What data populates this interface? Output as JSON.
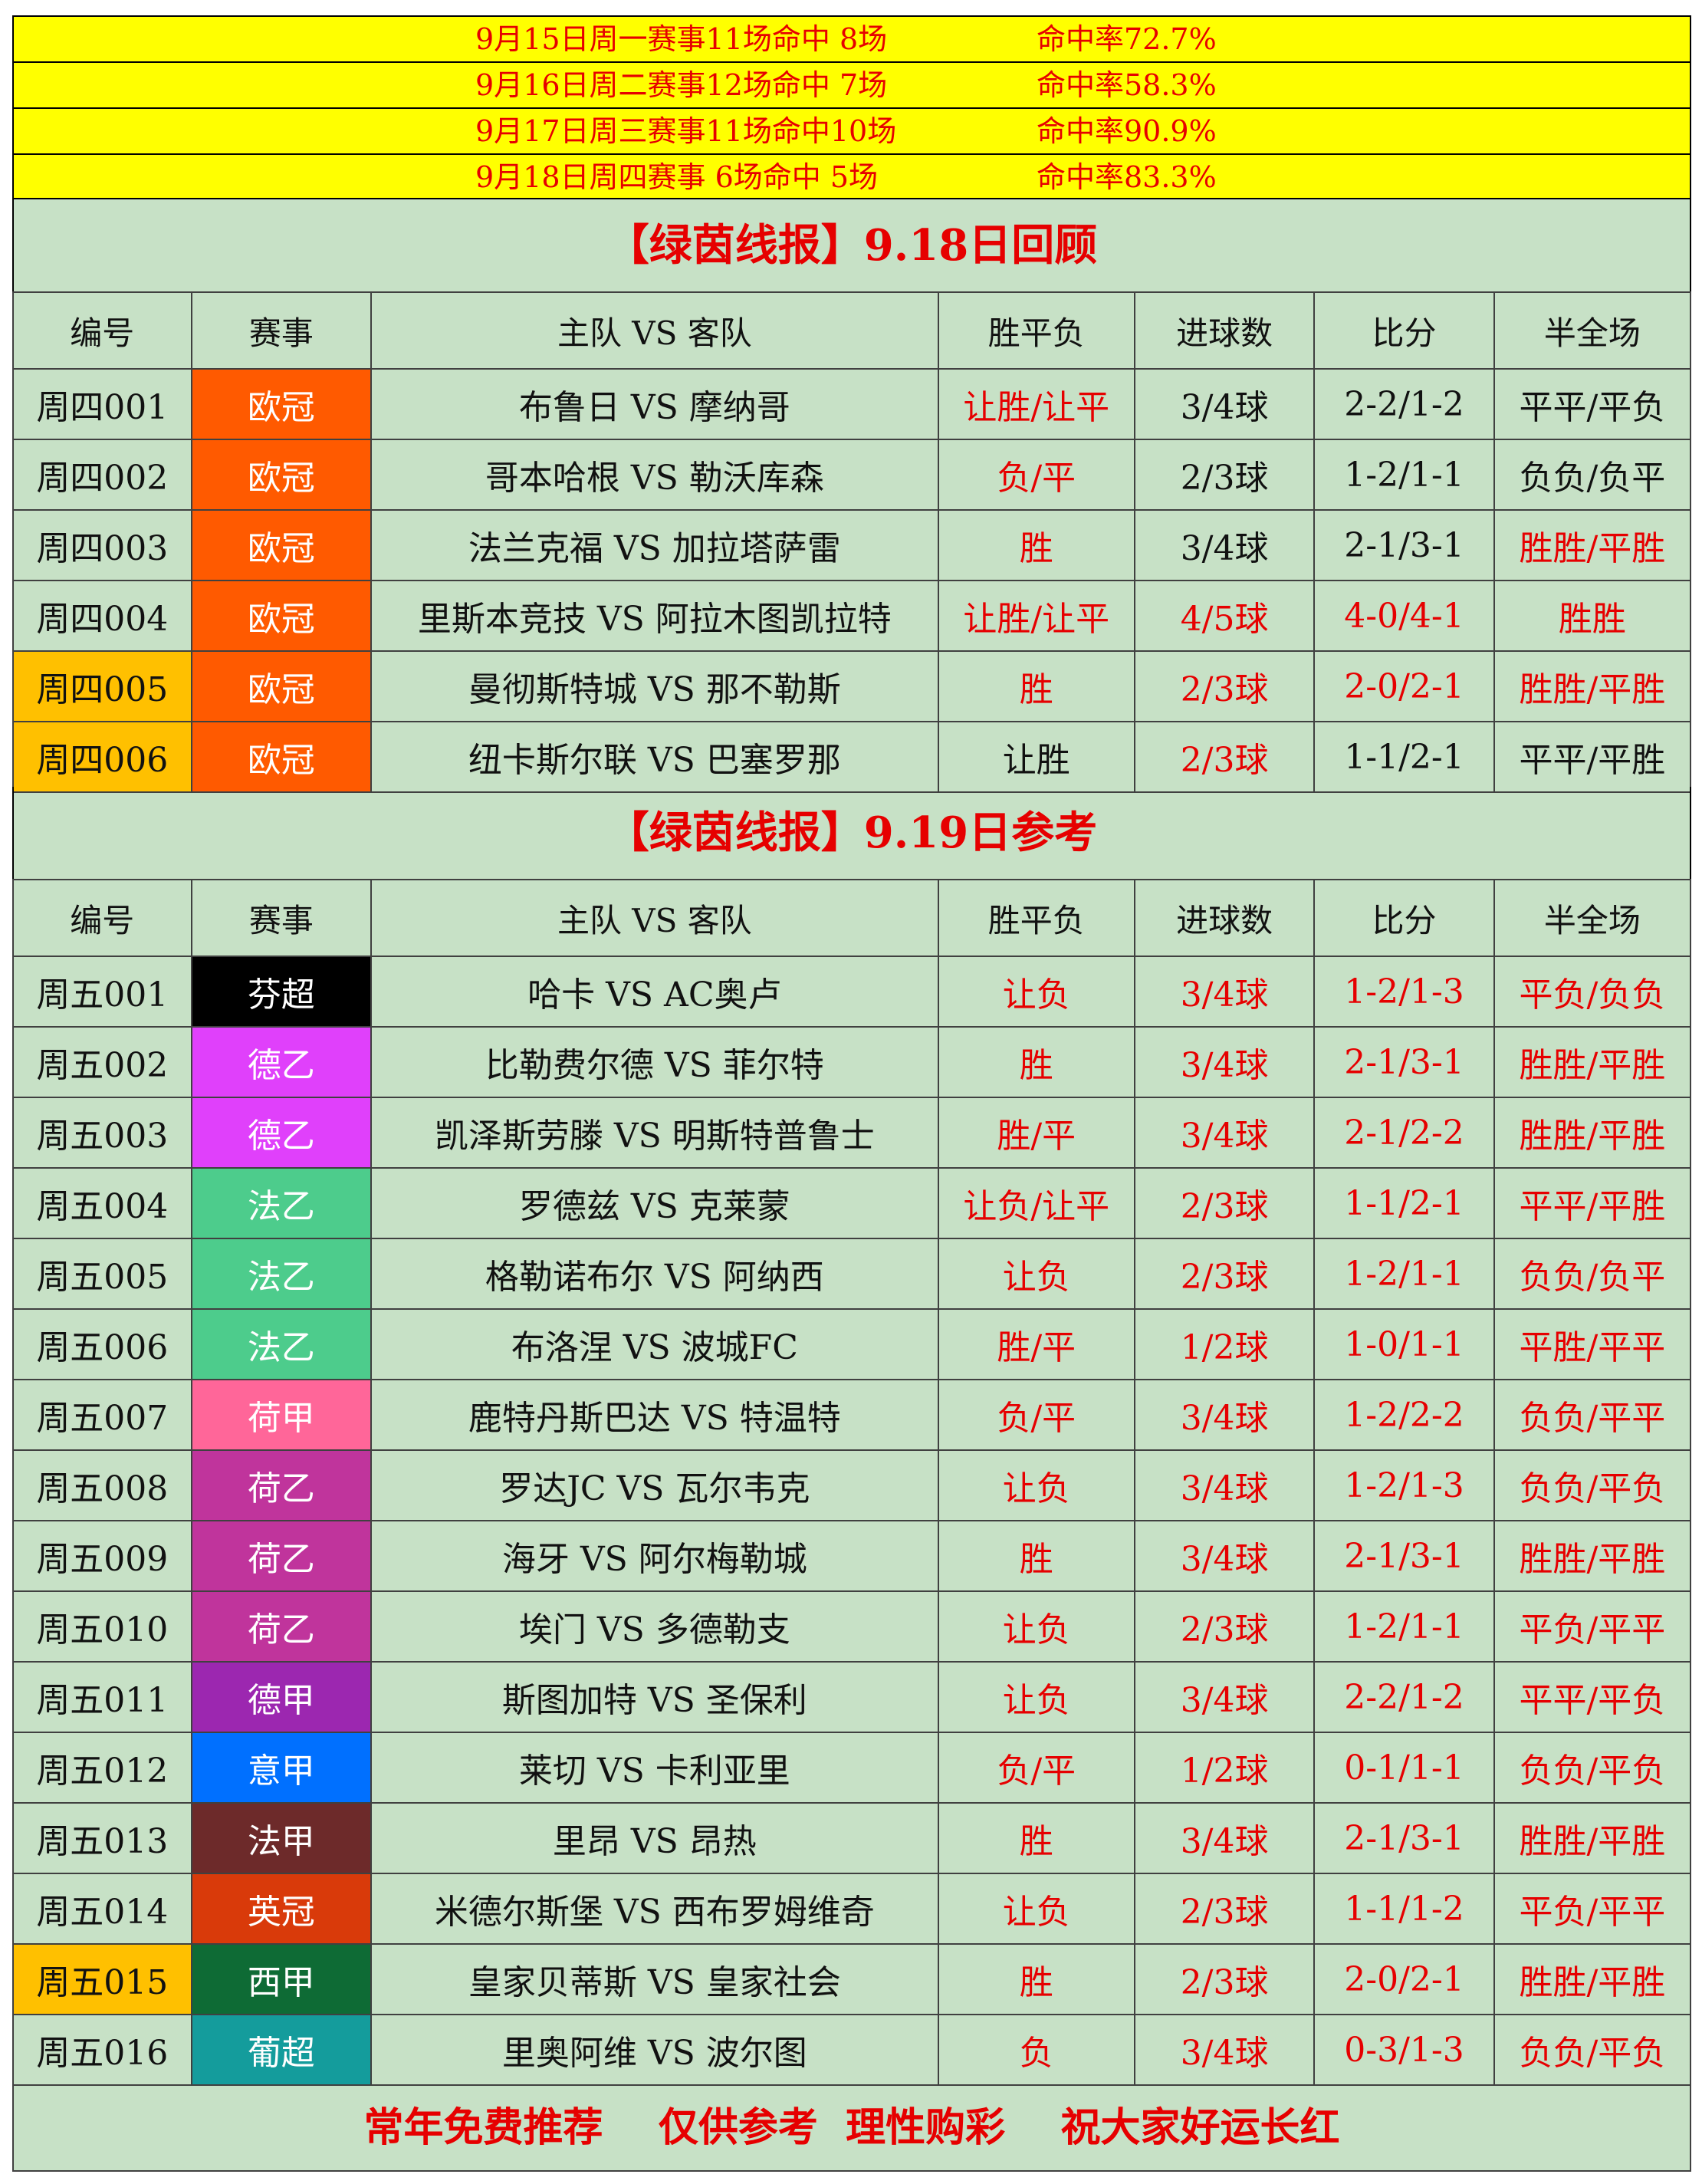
{
  "summary": [
    {
      "left": "9月15日周一赛事11场命中 8场",
      "right": "命中率72.7%"
    },
    {
      "left": "9月16日周二赛事12场命中 7场",
      "right": "命中率58.3%"
    },
    {
      "left": "9月17日周三赛事11场命中10场",
      "right": "命中率90.9%"
    },
    {
      "left": "9月18日周四赛事 6场命中 5场",
      "right": "命中率83.3%"
    }
  ],
  "review": {
    "title": "【绿茵线报】9.18日回顾",
    "headers": [
      "编号",
      "赛事",
      "主队 VS 客队",
      "胜平负",
      "进球数",
      "比分",
      "半全场"
    ],
    "rows": [
      {
        "id": "周四001",
        "league": "欧冠",
        "league_color": "#ff5a00",
        "match": "布鲁日 VS 摩纳哥",
        "result": "让胜/让平",
        "goals": "3/4球",
        "score": "2-2/1-2",
        "htft": "平平/平负",
        "id_hl": false,
        "red": [
          true,
          false,
          false,
          false
        ]
      },
      {
        "id": "周四002",
        "league": "欧冠",
        "league_color": "#ff5a00",
        "match": "哥本哈根 VS 勒沃库森",
        "result": "负/平",
        "goals": "2/3球",
        "score": "1-2/1-1",
        "htft": "负负/负平",
        "id_hl": false,
        "red": [
          true,
          false,
          false,
          false
        ]
      },
      {
        "id": "周四003",
        "league": "欧冠",
        "league_color": "#ff5a00",
        "match": "法兰克福 VS 加拉塔萨雷",
        "result": "胜",
        "goals": "3/4球",
        "score": "2-1/3-1",
        "htft": "胜胜/平胜",
        "id_hl": false,
        "red": [
          true,
          false,
          false,
          true
        ]
      },
      {
        "id": "周四004",
        "league": "欧冠",
        "league_color": "#ff5a00",
        "match": "里斯本竞技 VS 阿拉木图凯拉特",
        "result": "让胜/让平",
        "goals": "4/5球",
        "score": "4-0/4-1",
        "htft": "胜胜",
        "id_hl": false,
        "red": [
          true,
          true,
          true,
          true
        ]
      },
      {
        "id": "周四005",
        "league": "欧冠",
        "league_color": "#ff5a00",
        "match": "曼彻斯特城 VS 那不勒斯",
        "result": "胜",
        "goals": "2/3球",
        "score": "2-0/2-1",
        "htft": "胜胜/平胜",
        "id_hl": true,
        "red": [
          true,
          true,
          true,
          true
        ]
      },
      {
        "id": "周四006",
        "league": "欧冠",
        "league_color": "#ff5a00",
        "match": "纽卡斯尔联 VS 巴塞罗那",
        "result": "让胜",
        "goals": "2/3球",
        "score": "1-1/2-1",
        "htft": "平平/平胜",
        "id_hl": true,
        "red": [
          false,
          true,
          false,
          false
        ]
      }
    ]
  },
  "reference": {
    "title": "【绿茵线报】9.19日参考",
    "headers": [
      "编号",
      "赛事",
      "主队 VS 客队",
      "胜平负",
      "进球数",
      "比分",
      "半全场"
    ],
    "rows": [
      {
        "id": "周五001",
        "league": "芬超",
        "league_color": "#000000",
        "match": "哈卡 VS AC奥卢",
        "result": "让负",
        "goals": "3/4球",
        "score": "1-2/1-3",
        "htft": "平负/负负",
        "id_hl": false,
        "red": [
          true,
          true,
          true,
          true
        ]
      },
      {
        "id": "周五002",
        "league": "德乙",
        "league_color": "#e040fb",
        "match": "比勒费尔德 VS 菲尔特",
        "result": "胜",
        "goals": "3/4球",
        "score": "2-1/3-1",
        "htft": "胜胜/平胜",
        "id_hl": false,
        "red": [
          true,
          true,
          true,
          true
        ]
      },
      {
        "id": "周五003",
        "league": "德乙",
        "league_color": "#e040fb",
        "match": "凯泽斯劳滕 VS 明斯特普鲁士",
        "result": "胜/平",
        "goals": "3/4球",
        "score": "2-1/2-2",
        "htft": "胜胜/平胜",
        "id_hl": false,
        "red": [
          true,
          true,
          true,
          true
        ]
      },
      {
        "id": "周五004",
        "league": "法乙",
        "league_color": "#4dcc8c",
        "match": "罗德兹 VS 克莱蒙",
        "result": "让负/让平",
        "goals": "2/3球",
        "score": "1-1/2-1",
        "htft": "平平/平胜",
        "id_hl": false,
        "red": [
          true,
          true,
          true,
          true
        ]
      },
      {
        "id": "周五005",
        "league": "法乙",
        "league_color": "#4dcc8c",
        "match": "格勒诺布尔 VS 阿纳西",
        "result": "让负",
        "goals": "2/3球",
        "score": "1-2/1-1",
        "htft": "负负/负平",
        "id_hl": false,
        "red": [
          true,
          true,
          true,
          true
        ]
      },
      {
        "id": "周五006",
        "league": "法乙",
        "league_color": "#4dcc8c",
        "match": "布洛涅 VS 波城FC",
        "result": "胜/平",
        "goals": "1/2球",
        "score": "1-0/1-1",
        "htft": "平胜/平平",
        "id_hl": false,
        "red": [
          true,
          true,
          true,
          true
        ]
      },
      {
        "id": "周五007",
        "league": "荷甲",
        "league_color": "#ff6699",
        "match": "鹿特丹斯巴达 VS 特温特",
        "result": "负/平",
        "goals": "3/4球",
        "score": "1-2/2-2",
        "htft": "负负/平平",
        "id_hl": false,
        "red": [
          true,
          true,
          true,
          true
        ]
      },
      {
        "id": "周五008",
        "league": "荷乙",
        "league_color": "#c0349c",
        "match": "罗达JC VS 瓦尔韦克",
        "result": "让负",
        "goals": "3/4球",
        "score": "1-2/1-3",
        "htft": "负负/平负",
        "id_hl": false,
        "red": [
          true,
          true,
          true,
          true
        ]
      },
      {
        "id": "周五009",
        "league": "荷乙",
        "league_color": "#c0349c",
        "match": "海牙 VS 阿尔梅勒城",
        "result": "胜",
        "goals": "3/4球",
        "score": "2-1/3-1",
        "htft": "胜胜/平胜",
        "id_hl": false,
        "red": [
          true,
          true,
          true,
          true
        ]
      },
      {
        "id": "周五010",
        "league": "荷乙",
        "league_color": "#c0349c",
        "match": "埃门 VS 多德勒支",
        "result": "让负",
        "goals": "2/3球",
        "score": "1-2/1-1",
        "htft": "平负/平平",
        "id_hl": false,
        "red": [
          true,
          true,
          true,
          true
        ]
      },
      {
        "id": "周五011",
        "league": "德甲",
        "league_color": "#9c27b0",
        "match": "斯图加特 VS 圣保利",
        "result": "让负",
        "goals": "3/4球",
        "score": "2-2/1-2",
        "htft": "平平/平负",
        "id_hl": false,
        "red": [
          true,
          true,
          true,
          true
        ]
      },
      {
        "id": "周五012",
        "league": "意甲",
        "league_color": "#0070ff",
        "match": "莱切 VS 卡利亚里",
        "result": "负/平",
        "goals": "1/2球",
        "score": "0-1/1-1",
        "htft": "负负/平负",
        "id_hl": false,
        "red": [
          true,
          true,
          true,
          true
        ]
      },
      {
        "id": "周五013",
        "league": "法甲",
        "league_color": "#6d2a2a",
        "match": "里昂 VS 昂热",
        "result": "胜",
        "goals": "3/4球",
        "score": "2-1/3-1",
        "htft": "胜胜/平胜",
        "id_hl": false,
        "red": [
          true,
          true,
          true,
          true
        ]
      },
      {
        "id": "周五014",
        "league": "英冠",
        "league_color": "#d93a0a",
        "match": "米德尔斯堡 VS 西布罗姆维奇",
        "result": "让负",
        "goals": "2/3球",
        "score": "1-1/1-2",
        "htft": "平负/平平",
        "id_hl": false,
        "red": [
          true,
          true,
          true,
          true
        ]
      },
      {
        "id": "周五015",
        "league": "西甲",
        "league_color": "#0e6b35",
        "match": "皇家贝蒂斯 VS 皇家社会",
        "result": "胜",
        "goals": "2/3球",
        "score": "2-0/2-1",
        "htft": "胜胜/平胜",
        "id_hl": true,
        "red": [
          true,
          true,
          true,
          true
        ]
      },
      {
        "id": "周五016",
        "league": "葡超",
        "league_color": "#149c9c",
        "match": "里奥阿维 VS 波尔图",
        "result": "负",
        "goals": "3/4球",
        "score": "0-3/1-3",
        "htft": "负负/平负",
        "id_hl": false,
        "red": [
          true,
          true,
          true,
          true
        ]
      }
    ]
  },
  "footer": "常年免费推荐    仅供参考  理性购彩    祝大家好运长红"
}
